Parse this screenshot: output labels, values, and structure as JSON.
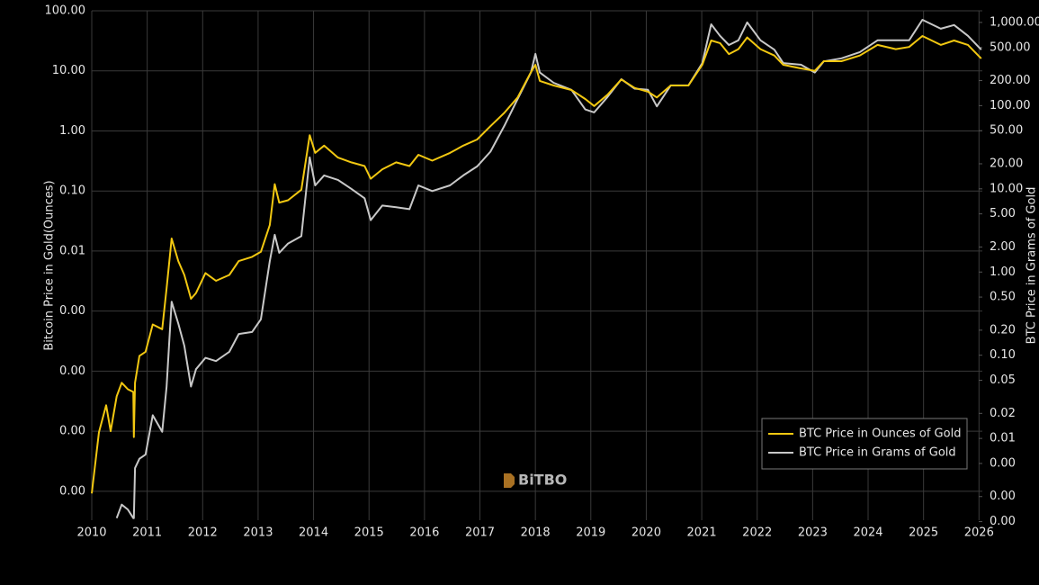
{
  "chart_data": {
    "type": "line",
    "y_label": "Bitcoin Price in Gold(Ounces)",
    "y2_label": "BTC Price in Grams of Gold",
    "watermark": "BiTBO",
    "ylog": true,
    "y2log": true,
    "grid": true,
    "legend": "lower right",
    "xlim": [
      2010,
      2026.06
    ],
    "xticks": [
      2010,
      2011,
      2012,
      2013,
      2014,
      2015,
      2016,
      2017,
      2018,
      2019,
      2020,
      2021,
      2022,
      2023,
      2024,
      2025,
      2026
    ],
    "ylim": [
      3.3e-07,
      100
    ],
    "yticks": [
      {
        "value": 100,
        "label": "100.00"
      },
      {
        "value": 10,
        "label": "10.00"
      },
      {
        "value": 1,
        "label": "1.00"
      },
      {
        "value": 0.1,
        "label": "0.10"
      },
      {
        "value": 0.01,
        "label": "0.01"
      },
      {
        "value": 0.001,
        "label": "0.00"
      },
      {
        "value": 0.0001,
        "label": "0.00"
      },
      {
        "value": 1e-05,
        "label": "0.00"
      },
      {
        "value": 1e-06,
        "label": "0.00"
      }
    ],
    "y2lim": [
      0.00104,
      1380
    ],
    "y2ticks": [
      {
        "value": 1000,
        "label": "1,000.00"
      },
      {
        "value": 500,
        "label": "500.00"
      },
      {
        "value": 200,
        "label": "200.00"
      },
      {
        "value": 100,
        "label": "100.00"
      },
      {
        "value": 50,
        "label": "50.00"
      },
      {
        "value": 20,
        "label": "20.00"
      },
      {
        "value": 10,
        "label": "10.00"
      },
      {
        "value": 5,
        "label": "5.00"
      },
      {
        "value": 2,
        "label": "2.00"
      },
      {
        "value": 1,
        "label": "1.00"
      },
      {
        "value": 0.5,
        "label": "0.50"
      },
      {
        "value": 0.2,
        "label": "0.20"
      },
      {
        "value": 0.1,
        "label": "0.10"
      },
      {
        "value": 0.05,
        "label": "0.05"
      },
      {
        "value": 0.02,
        "label": "0.02"
      },
      {
        "value": 0.01,
        "label": "0.01"
      },
      {
        "value": 0.005,
        "label": "0.00"
      },
      {
        "value": 0.002,
        "label": "0.00"
      },
      {
        "value": 0.001,
        "label": "0.00"
      }
    ],
    "x": [
      2010.0,
      2010.13,
      2010.26,
      2010.34,
      2010.45,
      2010.54,
      2010.65,
      2010.75,
      2010.76,
      2010.78,
      2010.86,
      2010.97,
      2011.1,
      2011.27,
      2011.35,
      2011.44,
      2011.56,
      2011.67,
      2011.79,
      2011.88,
      2012.05,
      2012.24,
      2012.48,
      2012.65,
      2012.89,
      2013.05,
      2013.21,
      2013.3,
      2013.38,
      2013.54,
      2013.78,
      2013.93,
      2014.03,
      2014.19,
      2014.44,
      2014.68,
      2014.92,
      2015.03,
      2015.24,
      2015.49,
      2015.73,
      2015.89,
      2016.14,
      2016.46,
      2016.7,
      2016.95,
      2017.19,
      2017.44,
      2017.68,
      2017.92,
      2018.0,
      2018.08,
      2018.33,
      2018.65,
      2018.9,
      2019.06,
      2019.3,
      2019.55,
      2019.79,
      2020.03,
      2020.19,
      2020.44,
      2020.76,
      2021.01,
      2021.17,
      2021.33,
      2021.49,
      2021.66,
      2021.82,
      2022.06,
      2022.31,
      2022.47,
      2022.79,
      2023.04,
      2023.2,
      2023.52,
      2023.85,
      2024.17,
      2024.5,
      2024.74,
      2024.98,
      2025.31,
      2025.55,
      2025.8,
      2026.04
    ],
    "series": [
      {
        "name": "BTC Price in Ounces of Gold",
        "color": "#f2c811",
        "axis": "y",
        "values": [
          9.2e-07,
          9.6e-06,
          2.7e-05,
          1e-05,
          3.8e-05,
          6.4e-05,
          5e-05,
          4.5e-05,
          8e-06,
          6.4e-05,
          0.00018,
          0.00021,
          0.0006,
          0.0005,
          0.0024,
          0.0162,
          0.0068,
          0.004,
          0.0016,
          0.002,
          0.0043,
          0.0032,
          0.004,
          0.0068,
          0.008,
          0.0097,
          0.027,
          0.13,
          0.064,
          0.07,
          0.105,
          0.85,
          0.43,
          0.57,
          0.36,
          0.3,
          0.26,
          0.16,
          0.23,
          0.3,
          0.26,
          0.4,
          0.32,
          0.43,
          0.57,
          0.72,
          1.2,
          2.0,
          3.6,
          9.5,
          12.6,
          6.8,
          5.7,
          4.8,
          3.4,
          2.6,
          4.0,
          7.2,
          5.2,
          4.5,
          3.6,
          5.7,
          5.7,
          12.6,
          32,
          29,
          19,
          23,
          36,
          23,
          18,
          12.6,
          11,
          10,
          14.5,
          14.5,
          18,
          27,
          23,
          25,
          38,
          27,
          32,
          27,
          16
        ]
      },
      {
        "name": "BTC Price in Grams of Gold",
        "color": "#c8c8c8",
        "axis": "y2",
        "values": [
          null,
          null,
          null,
          null,
          0.0011,
          0.0016,
          0.0014,
          0.0011,
          0.0011,
          0.0044,
          0.0057,
          0.0064,
          0.019,
          0.012,
          0.042,
          0.44,
          0.24,
          0.13,
          0.042,
          0.068,
          0.093,
          0.085,
          0.11,
          0.18,
          0.19,
          0.27,
          1.35,
          2.8,
          1.7,
          2.2,
          2.7,
          24,
          11,
          14.5,
          12.8,
          10,
          7.7,
          4.2,
          6.3,
          6,
          5.7,
          11,
          9.4,
          11,
          14.5,
          18.6,
          28,
          57,
          120,
          250,
          420,
          250,
          188,
          155,
          90,
          83,
          127,
          208,
          160,
          155,
          98,
          175,
          175,
          325,
          950,
          690,
          535,
          610,
          1000,
          610,
          470,
          325,
          310,
          250,
          340,
          370,
          440,
          610,
          610,
          610,
          1075,
          840,
          930,
          690,
          470
        ]
      }
    ]
  }
}
